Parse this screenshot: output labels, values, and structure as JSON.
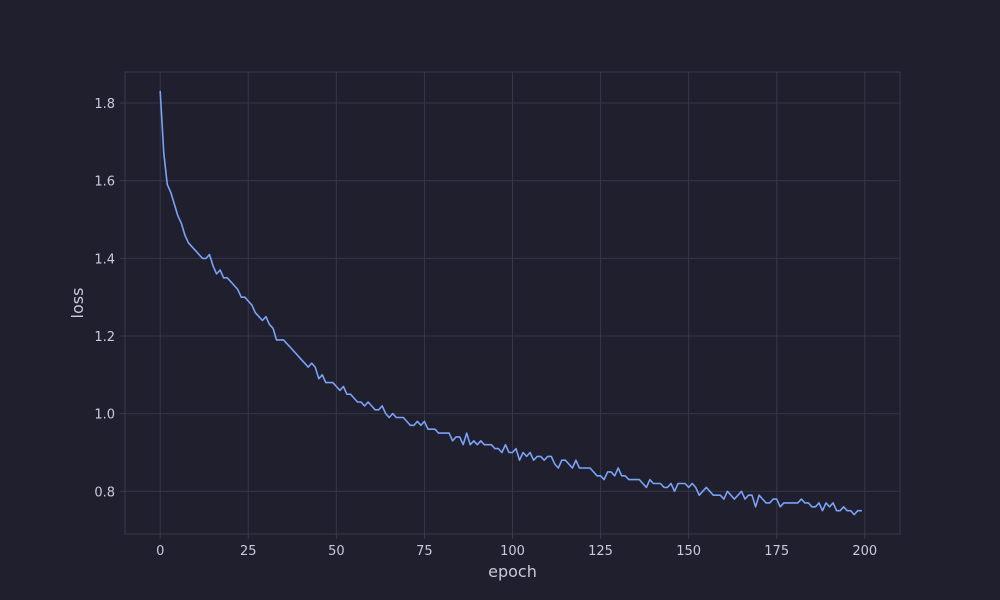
{
  "colors": {
    "background": "#1f1f2e",
    "plot_background": "#1f1f2e",
    "grid": "#36364a",
    "spine": "#3a3a4e",
    "text": "#c9c9dc",
    "line": "#7aa2f7"
  },
  "chart_data": {
    "type": "line",
    "title": "",
    "xlabel": "epoch",
    "ylabel": "loss",
    "xlim": [
      -10,
      210
    ],
    "ylim": [
      0.69,
      1.88
    ],
    "xticks": [
      0,
      25,
      50,
      75,
      100,
      125,
      150,
      175,
      200
    ],
    "yticks": [
      0.8,
      1.0,
      1.2,
      1.4,
      1.6,
      1.8
    ],
    "ytick_labels": [
      "0.8",
      "1.0",
      "1.2",
      "1.4",
      "1.6",
      "1.8"
    ],
    "grid": true,
    "legend": "none",
    "series": [
      {
        "x": [
          0,
          1,
          2,
          3,
          4,
          5,
          6,
          7,
          8,
          9,
          10,
          11,
          12,
          13,
          14,
          15,
          16,
          17,
          18,
          19,
          20,
          21,
          22,
          23,
          24,
          25,
          26,
          27,
          28,
          29,
          30,
          31,
          32,
          33,
          34,
          35,
          36,
          37,
          38,
          39,
          40,
          41,
          42,
          43,
          44,
          45,
          46,
          47,
          48,
          49,
          50,
          51,
          52,
          53,
          54,
          55,
          56,
          57,
          58,
          59,
          60,
          61,
          62,
          63,
          64,
          65,
          66,
          67,
          68,
          69,
          70,
          71,
          72,
          73,
          74,
          75,
          76,
          77,
          78,
          79,
          80,
          81,
          82,
          83,
          84,
          85,
          86,
          87,
          88,
          89,
          90,
          91,
          92,
          93,
          94,
          95,
          96,
          97,
          98,
          99,
          100,
          101,
          102,
          103,
          104,
          105,
          106,
          107,
          108,
          109,
          110,
          111,
          112,
          113,
          114,
          115,
          116,
          117,
          118,
          119,
          120,
          121,
          122,
          123,
          124,
          125,
          126,
          127,
          128,
          129,
          130,
          131,
          132,
          133,
          134,
          135,
          136,
          137,
          138,
          139,
          140,
          141,
          142,
          143,
          144,
          145,
          146,
          147,
          148,
          149,
          150,
          151,
          152,
          153,
          154,
          155,
          156,
          157,
          158,
          159,
          160,
          161,
          162,
          163,
          164,
          165,
          166,
          167,
          168,
          169,
          170,
          171,
          172,
          173,
          174,
          175,
          176,
          177,
          178,
          179,
          180,
          181,
          182,
          183,
          184,
          185,
          186,
          187,
          188,
          189,
          190,
          191,
          192,
          193,
          194,
          195,
          196,
          197,
          198,
          199
        ],
        "values": [
          1.83,
          1.67,
          1.59,
          1.57,
          1.54,
          1.51,
          1.49,
          1.46,
          1.44,
          1.43,
          1.42,
          1.41,
          1.4,
          1.4,
          1.41,
          1.38,
          1.36,
          1.37,
          1.35,
          1.35,
          1.34,
          1.33,
          1.32,
          1.3,
          1.3,
          1.29,
          1.28,
          1.26,
          1.25,
          1.24,
          1.25,
          1.23,
          1.22,
          1.19,
          1.19,
          1.19,
          1.18,
          1.17,
          1.16,
          1.15,
          1.14,
          1.13,
          1.12,
          1.13,
          1.12,
          1.09,
          1.1,
          1.08,
          1.08,
          1.08,
          1.07,
          1.06,
          1.07,
          1.05,
          1.05,
          1.04,
          1.03,
          1.03,
          1.02,
          1.03,
          1.02,
          1.01,
          1.01,
          1.02,
          1.0,
          0.99,
          1.0,
          0.99,
          0.99,
          0.99,
          0.98,
          0.97,
          0.97,
          0.98,
          0.97,
          0.98,
          0.96,
          0.96,
          0.96,
          0.95,
          0.95,
          0.95,
          0.95,
          0.93,
          0.94,
          0.94,
          0.92,
          0.95,
          0.92,
          0.93,
          0.92,
          0.93,
          0.92,
          0.92,
          0.92,
          0.91,
          0.91,
          0.9,
          0.92,
          0.9,
          0.9,
          0.91,
          0.88,
          0.9,
          0.89,
          0.9,
          0.88,
          0.89,
          0.89,
          0.88,
          0.89,
          0.89,
          0.87,
          0.86,
          0.88,
          0.88,
          0.87,
          0.86,
          0.88,
          0.86,
          0.86,
          0.86,
          0.86,
          0.85,
          0.84,
          0.84,
          0.83,
          0.85,
          0.85,
          0.84,
          0.86,
          0.84,
          0.84,
          0.83,
          0.83,
          0.83,
          0.83,
          0.82,
          0.81,
          0.83,
          0.82,
          0.82,
          0.82,
          0.81,
          0.81,
          0.82,
          0.8,
          0.82,
          0.82,
          0.82,
          0.81,
          0.82,
          0.81,
          0.79,
          0.8,
          0.81,
          0.8,
          0.79,
          0.79,
          0.79,
          0.78,
          0.8,
          0.79,
          0.78,
          0.79,
          0.8,
          0.78,
          0.79,
          0.79,
          0.76,
          0.79,
          0.78,
          0.77,
          0.77,
          0.78,
          0.78,
          0.76,
          0.77,
          0.77,
          0.77,
          0.77,
          0.77,
          0.78,
          0.77,
          0.77,
          0.76,
          0.76,
          0.77,
          0.75,
          0.77,
          0.76,
          0.77,
          0.75,
          0.75,
          0.76,
          0.75,
          0.75,
          0.74,
          0.75,
          0.75
        ]
      }
    ]
  }
}
